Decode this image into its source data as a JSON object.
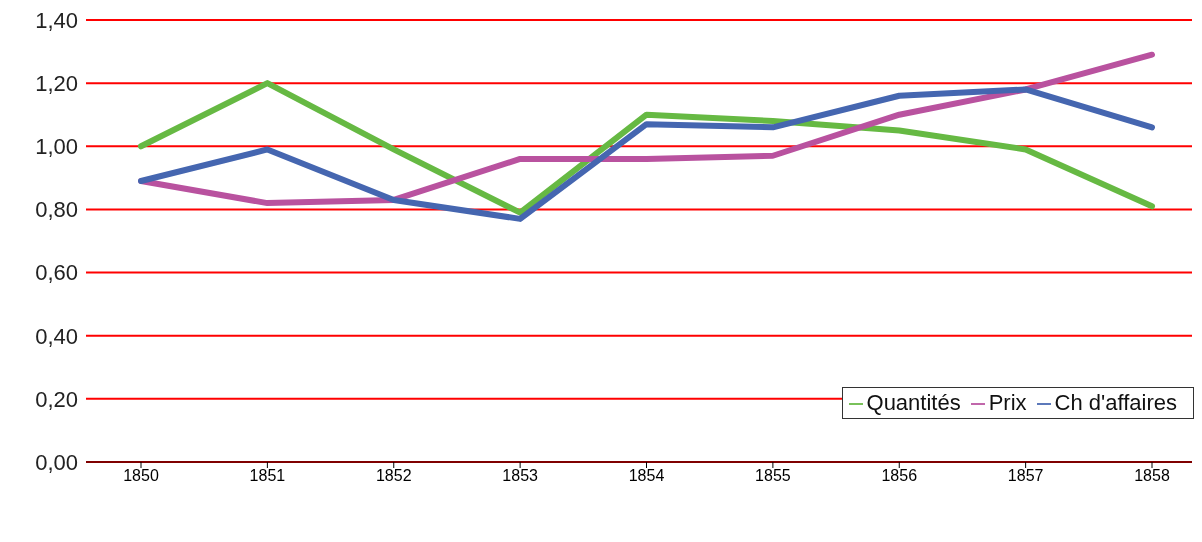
{
  "chart_data": {
    "type": "line",
    "categories": [
      "1850",
      "1851",
      "1852",
      "1853",
      "1854",
      "1855",
      "1856",
      "1857",
      "1858"
    ],
    "series": [
      {
        "name": "Quantités",
        "color": "#66b943",
        "values": [
          1.0,
          1.2,
          0.99,
          0.79,
          1.1,
          1.08,
          1.05,
          0.99,
          0.81
        ]
      },
      {
        "name": "Prix",
        "color": "#b9529f",
        "values": [
          0.89,
          0.82,
          0.83,
          0.96,
          0.96,
          0.97,
          1.1,
          1.18,
          1.29
        ]
      },
      {
        "name": "Ch d'affaires",
        "color": "#4566b0",
        "values": [
          0.89,
          0.99,
          0.83,
          0.77,
          1.07,
          1.06,
          1.16,
          1.18,
          1.06
        ]
      }
    ],
    "ylim": [
      0,
      1.4
    ],
    "yticks": [
      {
        "value": 0,
        "label": "0,00"
      },
      {
        "value": 0.2,
        "label": "0,20"
      },
      {
        "value": 0.4,
        "label": "0,40"
      },
      {
        "value": 0.6,
        "label": "0,60"
      },
      {
        "value": 0.8,
        "label": "0,80"
      },
      {
        "value": 1.0,
        "label": "1,00"
      },
      {
        "value": 1.2,
        "label": "1,20"
      },
      {
        "value": 1.4,
        "label": "1,40"
      }
    ],
    "grid": "y",
    "legend": "bottom right",
    "marker": "none",
    "line_style": "solid"
  }
}
